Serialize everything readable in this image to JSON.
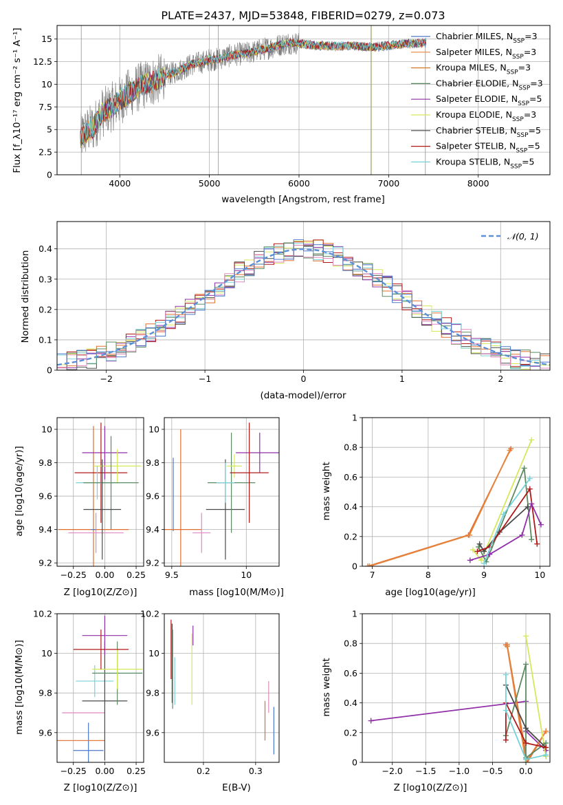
{
  "chart_data": [
    {
      "id": "spectrum",
      "type": "line",
      "title": "PLATE=2437, MJD=53848, FIBERID=0279, z=0.073",
      "xlabel": "wavelength [Angstrom, rest frame]",
      "ylabel": "Flux [f_λ10⁻¹⁷ erg cm⁻² s⁻¹ A⁻¹]",
      "xlim": [
        3300,
        8800
      ],
      "ylim": [
        0,
        16.5
      ],
      "xticks": [
        4000,
        5000,
        6000,
        7000,
        8000
      ],
      "yticks": [
        0.0,
        2.5,
        5.0,
        7.5,
        10.0,
        12.5,
        15.0
      ],
      "grid": true,
      "legend_position": "top-right",
      "data_series": {
        "name": "",
        "color": "#808080",
        "x": [
          3560,
          3600,
          3700,
          3800,
          3900,
          4000,
          4100,
          4200,
          4300,
          4400,
          4500,
          4600,
          4700,
          4800,
          4900,
          5000,
          5100,
          5200,
          5300,
          5400,
          5500,
          5600,
          5700,
          5800,
          5900,
          6000,
          6200,
          6400,
          6600,
          6800,
          7000,
          7200,
          7400
        ],
        "y": [
          4.0,
          4.6,
          5.2,
          6.8,
          7.4,
          8.2,
          9.0,
          9.6,
          10.1,
          10.4,
          10.9,
          11.3,
          11.7,
          12.2,
          12.4,
          12.7,
          12.8,
          13.1,
          13.3,
          13.4,
          13.6,
          13.9,
          14.1,
          14.4,
          14.6,
          14.5,
          14.3,
          14.2,
          14.3,
          14.1,
          14.3,
          14.5,
          14.6
        ]
      },
      "series": [
        {
          "name": "Chabrier MILES, N_SSP=3",
          "color": "#4c78c8"
        },
        {
          "name": "Salpeter MILES, N_SSP=3",
          "color": "#e7843c"
        },
        {
          "name": "Kroupa MILES, N_SSP=3",
          "color": "#d57a2a"
        },
        {
          "name": "Chabrier ELODIE, N_SSP=3",
          "color": "#5b8a62"
        },
        {
          "name": "Salpeter ELODIE, N_SSP=5",
          "color": "#8e2fa6"
        },
        {
          "name": "Kroupa ELODIE, N_SSP=3",
          "color": "#d6e85a"
        },
        {
          "name": "Chabrier STELIB, N_SSP=5",
          "color": "#4a4a4a"
        },
        {
          "name": "Salpeter STELIB, N_SSP=5",
          "color": "#b01818"
        },
        {
          "name": "Kroupa STELIB, N_SSP=5",
          "color": "#76d2d8"
        }
      ]
    },
    {
      "id": "residuals",
      "type": "line",
      "title": "",
      "xlabel": "(data-model)/error",
      "ylabel": "Normed distribution",
      "xlim": [
        -2.5,
        2.5
      ],
      "ylim": [
        0,
        0.49
      ],
      "xticks": [
        -2,
        -1,
        0,
        1,
        2
      ],
      "yticks": [
        0.0,
        0.1,
        0.2,
        0.3,
        0.4
      ],
      "grid": true,
      "legend_position": "top-right",
      "legend": "𝒩(0, 1)",
      "normal_color": "#5b8fd6",
      "hist_colors": [
        "#e06c2a",
        "#8e2fa6",
        "#d6e85a",
        "#4a4a4a",
        "#b01818",
        "#76d2d8",
        "#5b8a62",
        "#e088c0",
        "#4c78c8"
      ]
    },
    {
      "id": "age_vs_Z",
      "type": "scatter",
      "xlabel": "Z [log10(Z/Z⊙)]",
      "ylabel": "age  [log10(age/yr)]",
      "xlim": [
        -0.38,
        0.31
      ],
      "ylim": [
        9.18,
        10.07
      ],
      "xticks": [
        -0.25,
        0.0,
        0.25
      ],
      "xtick_labels": [
        "−0.25",
        "0.00",
        "0.25"
      ],
      "yticks": [
        9.2,
        9.4,
        9.6,
        9.8,
        10.0
      ],
      "grid": true,
      "points": [
        {
          "color": "#e06c2a",
          "x": -0.09,
          "y": 9.4,
          "xerr": 0.28,
          "yerr": 0.62
        },
        {
          "color": "#e088c0",
          "x": -0.07,
          "y": 9.38,
          "xerr": 0.22,
          "yerr": 0.12
        },
        {
          "color": "#8e2fa6",
          "x": 0.0,
          "y": 9.86,
          "xerr": 0.18,
          "yerr": 0.16
        },
        {
          "color": "#b01818",
          "x": -0.03,
          "y": 9.74,
          "xerr": 0.21,
          "yerr": 0.3
        },
        {
          "color": "#d6e85a",
          "x": 0.1,
          "y": 9.78,
          "xerr": 0.19,
          "yerr": 0.1
        },
        {
          "color": "#76d2d8",
          "x": -0.06,
          "y": 9.68,
          "xerr": 0.17,
          "yerr": 0.1
        },
        {
          "color": "#5b8a62",
          "x": 0.05,
          "y": 9.68,
          "xerr": 0.22,
          "yerr": 0.28
        },
        {
          "color": "#4a4a4a",
          "x": -0.02,
          "y": 9.52,
          "xerr": 0.15,
          "yerr": 0.3
        },
        {
          "color": "#4c78c8",
          "x": -0.09,
          "y": 9.4,
          "xerr": 0.02,
          "yerr": 0.0
        }
      ]
    },
    {
      "id": "age_vs_mass",
      "type": "scatter",
      "xlabel": "mass [log10(M/M⊙)]",
      "ylabel": "",
      "xlim": [
        9.45,
        10.22
      ],
      "ylim": [
        9.18,
        10.07
      ],
      "xticks": [
        9.5,
        10.0
      ],
      "yticks": [
        9.2,
        9.4,
        9.6,
        9.8,
        10.0
      ],
      "grid": true,
      "points": [
        {
          "color": "#4c78c8",
          "x": 9.51,
          "y": 9.61,
          "xerr": 0.0,
          "yerr": 0.22
        },
        {
          "color": "#e06c2a",
          "x": 9.56,
          "y": 9.4,
          "xerr": 0.14,
          "yerr": 0.6
        },
        {
          "color": "#e088c0",
          "x": 9.7,
          "y": 9.38,
          "xerr": 0.06,
          "yerr": 0.12
        },
        {
          "color": "#4a4a4a",
          "x": 9.86,
          "y": 9.52,
          "xerr": 0.13,
          "yerr": 0.3
        },
        {
          "color": "#5b8a62",
          "x": 9.9,
          "y": 9.68,
          "xerr": 0.16,
          "yerr": 0.3
        },
        {
          "color": "#76d2d8",
          "x": 9.86,
          "y": 9.68,
          "xerr": 0.06,
          "yerr": 0.12
        },
        {
          "color": "#d6e85a",
          "x": 9.92,
          "y": 9.78,
          "xerr": 0.05,
          "yerr": 0.07
        },
        {
          "color": "#8e2fa6",
          "x": 10.09,
          "y": 9.86,
          "xerr": 0.16,
          "yerr": 0.12
        },
        {
          "color": "#b01818",
          "x": 10.02,
          "y": 9.74,
          "xerr": 0.13,
          "yerr": 0.3
        }
      ]
    },
    {
      "id": "massweight_vs_age",
      "type": "line",
      "xlabel": "age  [log10(age/yr)]",
      "ylabel": "mass weight",
      "xlim": [
        6.82,
        10.18
      ],
      "ylim": [
        0,
        1.0
      ],
      "xticks": [
        7,
        8,
        9,
        10
      ],
      "yticks": [
        0.0,
        0.2,
        0.4,
        0.6,
        0.8,
        1.0
      ],
      "grid": true,
      "lines": [
        {
          "color": "#e06c2a",
          "x": [
            6.92,
            8.72,
            9.48
          ],
          "y": [
            0.0,
            0.21,
            0.79
          ]
        },
        {
          "color": "#e7843c",
          "x": [
            6.95,
            8.74,
            9.46
          ],
          "y": [
            0.0,
            0.21,
            0.78
          ]
        },
        {
          "color": "#d6e85a",
          "x": [
            8.8,
            8.95,
            9.85
          ],
          "y": [
            0.11,
            0.04,
            0.85
          ]
        },
        {
          "color": "#5b8a62",
          "x": [
            8.9,
            9.04,
            9.72,
            9.85
          ],
          "y": [
            0.13,
            0.03,
            0.66,
            0.18
          ]
        },
        {
          "color": "#4a4a4a",
          "x": [
            8.92,
            9.0,
            9.28,
            9.78
          ],
          "y": [
            0.15,
            0.1,
            0.23,
            0.4
          ]
        },
        {
          "color": "#b01818",
          "x": [
            8.88,
            9.1,
            9.82,
            9.95
          ],
          "y": [
            0.1,
            0.13,
            0.52,
            0.15
          ]
        },
        {
          "color": "#8e2fa6",
          "x": [
            8.75,
            9.1,
            9.68,
            9.85,
            10.02
          ],
          "y": [
            0.04,
            0.08,
            0.21,
            0.42,
            0.28
          ]
        },
        {
          "color": "#76d2d8",
          "x": [
            9.0,
            9.35,
            9.82
          ],
          "y": [
            0.02,
            0.35,
            0.59
          ]
        }
      ]
    },
    {
      "id": "mass_vs_Z",
      "type": "scatter",
      "xlabel": "Z [log10(Z/Z⊙)]",
      "ylabel": "mass [log10(M/M⊙)]",
      "xlim": [
        -0.38,
        0.31
      ],
      "ylim": [
        9.45,
        10.2
      ],
      "xticks": [
        -0.25,
        0.0,
        0.25
      ],
      "xtick_labels": [
        "−0.25",
        "0.00",
        "0.25"
      ],
      "yticks": [
        9.6,
        9.8,
        10.0,
        10.2
      ],
      "grid": true,
      "points": [
        {
          "color": "#4c78c8",
          "x": -0.13,
          "y": 9.51,
          "xerr": 0.12,
          "yerr": 0.14
        },
        {
          "color": "#e06c2a",
          "x": -0.2,
          "y": 9.56,
          "xerr": 0.2,
          "yerr": 0.0
        },
        {
          "color": "#e088c0",
          "x": -0.17,
          "y": 9.7,
          "xerr": 0.17,
          "yerr": 0.0
        },
        {
          "color": "#76d2d8",
          "x": -0.08,
          "y": 9.86,
          "xerr": 0.15,
          "yerr": 0.08
        },
        {
          "color": "#4a4a4a",
          "x": 0.0,
          "y": 9.76,
          "xerr": 0.18,
          "yerr": 0.3
        },
        {
          "color": "#5b8a62",
          "x": 0.1,
          "y": 9.9,
          "xerr": 0.2,
          "yerr": 0.16
        },
        {
          "color": "#d6e85a",
          "x": 0.1,
          "y": 9.92,
          "xerr": 0.2,
          "yerr": 0.1
        },
        {
          "color": "#8e2fa6",
          "x": 0.0,
          "y": 10.09,
          "xerr": 0.18,
          "yerr": 0.1
        },
        {
          "color": "#b01818",
          "x": -0.03,
          "y": 10.02,
          "xerr": 0.22,
          "yerr": 0.1
        }
      ]
    },
    {
      "id": "mass_vs_EBV",
      "type": "scatter",
      "xlabel": "E(B-V)",
      "ylabel": "",
      "xlim": [
        0.125,
        0.345
      ],
      "ylim": [
        9.45,
        10.2
      ],
      "xticks": [
        0.2,
        0.3
      ],
      "yticks": [
        9.6,
        9.8,
        10.0,
        10.2
      ],
      "grid": true,
      "points": [
        {
          "color": "#b01818",
          "x": 0.138,
          "y": 10.02,
          "yerr": 0.15
        },
        {
          "color": "#4a4a4a",
          "x": 0.14,
          "y": 9.95,
          "yerr": 0.2
        },
        {
          "color": "#5b8a62",
          "x": 0.141,
          "y": 9.92,
          "yerr": 0.2
        },
        {
          "color": "#76d2d8",
          "x": 0.145,
          "y": 9.86,
          "yerr": 0.12
        },
        {
          "color": "#8e2fa6",
          "x": 0.18,
          "y": 10.09,
          "yerr": 0.05
        },
        {
          "color": "#d6e85a",
          "x": 0.178,
          "y": 9.92,
          "yerr": 0.18
        },
        {
          "color": "#e06c2a",
          "x": 0.318,
          "y": 9.66,
          "yerr": 0.1
        },
        {
          "color": "#e088c0",
          "x": 0.325,
          "y": 9.78,
          "yerr": 0.08
        },
        {
          "color": "#4c78c8",
          "x": 0.335,
          "y": 9.61,
          "yerr": 0.12
        }
      ]
    },
    {
      "id": "massweight_vs_Z",
      "type": "line",
      "xlabel": "Z [log10(Z/Z⊙)]",
      "ylabel": "mass weight",
      "xlim": [
        -2.45,
        0.36
      ],
      "ylim": [
        0,
        1.0
      ],
      "xticks": [
        -2.0,
        -1.5,
        -1.0,
        -0.5,
        0.0
      ],
      "xtick_labels": [
        "−2.0",
        "−1.5",
        "−1.0",
        "−0.5",
        "0.0"
      ],
      "yticks": [
        0.0,
        0.2,
        0.4,
        0.6,
        0.8,
        1.0
      ],
      "grid": true,
      "lines": [
        {
          "color": "#8e2fa6",
          "x": [
            -2.32,
            0.0,
            0.0,
            0.3,
            0.3
          ],
          "y": [
            0.28,
            0.41,
            0.21,
            0.08,
            0.04
          ]
        },
        {
          "color": "#e06c2a",
          "x": [
            -0.3,
            -0.28,
            0.02,
            0.3
          ],
          "y": [
            0.79,
            0.79,
            0.0,
            0.21
          ]
        },
        {
          "color": "#e7843c",
          "x": [
            -0.28,
            0.0,
            0.3
          ],
          "y": [
            0.78,
            0.0,
            0.21
          ]
        },
        {
          "color": "#d6e85a",
          "x": [
            0.0,
            0.3
          ],
          "y": [
            0.85,
            0.04
          ]
        },
        {
          "color": "#5b8a62",
          "x": [
            -0.3,
            0.0,
            0.0,
            0.3
          ],
          "y": [
            0.18,
            0.66,
            0.03,
            0.13
          ]
        },
        {
          "color": "#4a4a4a",
          "x": [
            -0.3,
            0.0,
            0.3
          ],
          "y": [
            0.52,
            0.23,
            0.1
          ]
        },
        {
          "color": "#b01818",
          "x": [
            -0.3,
            -0.3,
            0.0,
            0.3
          ],
          "y": [
            0.15,
            0.4,
            0.13,
            0.1
          ]
        },
        {
          "color": "#76d2d8",
          "x": [
            -0.3,
            -0.3,
            0.0,
            0.3
          ],
          "y": [
            0.59,
            0.35,
            0.02,
            0.05
          ]
        }
      ]
    }
  ]
}
